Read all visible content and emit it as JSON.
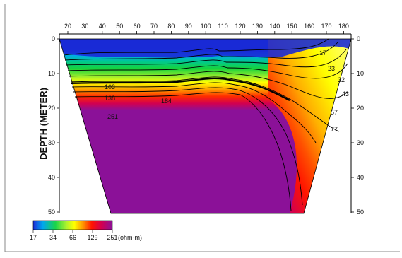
{
  "chart_data": {
    "type": "heatmap",
    "title": "",
    "xlabel": "",
    "ylabel": "DEPTH (METER)",
    "x_ticks": [
      "20",
      "30",
      "40",
      "50",
      "60",
      "70",
      "80",
      "90",
      "100",
      "110",
      "120",
      "130",
      "140",
      "150",
      "160",
      "170",
      "180"
    ],
    "y_ticks_left": [
      "0",
      "10",
      "20",
      "30",
      "40",
      "50"
    ],
    "y_ticks_right": [
      "0",
      "10",
      "20",
      "30",
      "40",
      "50"
    ],
    "colorscale": {
      "ticks": [
        "17",
        "34",
        "66",
        "129",
        "251"
      ],
      "unit": "(ohm-m)",
      "colors": [
        "#1d2cd8",
        "#00a6f0",
        "#19d44a",
        "#aef22d",
        "#ffff00",
        "#ff8a00",
        "#ff1400",
        "#d4004e",
        "#8a1199"
      ]
    },
    "contour_labels": [
      "17",
      "23",
      "32",
      "43",
      "57",
      "77",
      "103",
      "138",
      "184",
      "251"
    ]
  }
}
